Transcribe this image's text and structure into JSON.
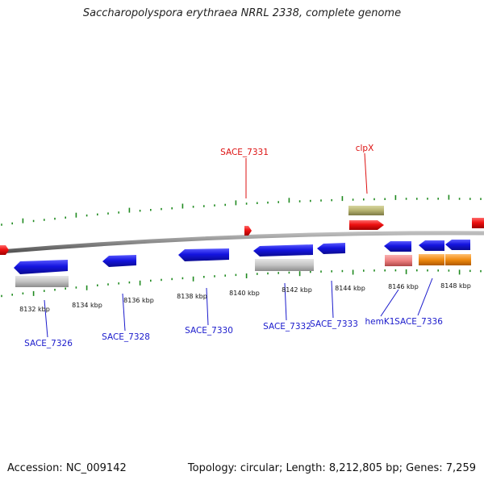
{
  "title": "Saccharopolyspora erythraea NRRL 2338, complete genome",
  "footer": {
    "accession": "Accession: NC_009142",
    "summary": "Topology: circular; Length: 8,212,805 bp; Genes: 7,259"
  },
  "colors": {
    "forward_tick": "#1f8a1f",
    "reverse_tick": "#1f8a1f",
    "forward_label": "#dd1111",
    "reverse_label": "#1a1acc",
    "gene_blue": "#1515e0",
    "gene_red": "#ee1111",
    "gene_olive": "#b5b270",
    "gene_grey": "#c4c4c4",
    "gene_pink": "#ee8080",
    "gene_orange": "#f08a10",
    "backbone": "#8a8a8a"
  },
  "ruler": {
    "labels": [
      "8132 kbp",
      "8134 kbp",
      "8136 kbp",
      "8138 kbp",
      "8140 kbp",
      "8142 kbp",
      "8144 kbp",
      "8146 kbp",
      "8148 kbp"
    ]
  },
  "gene_labels": {
    "forward": [
      "SACE_7331",
      "clpX"
    ],
    "reverse": [
      "SACE_7326",
      "SACE_7328",
      "SACE_7330",
      "SACE_7332",
      "SACE_7333",
      "hemK1",
      "SACE_7336"
    ]
  }
}
